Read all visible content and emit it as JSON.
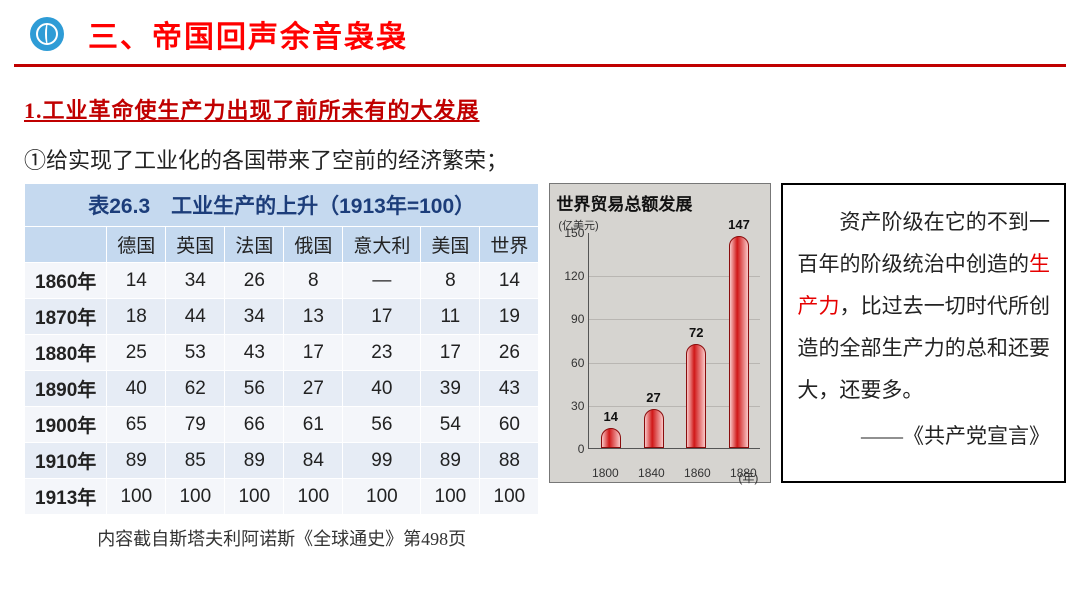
{
  "header": {
    "title": "三、帝国回声余音袅袅"
  },
  "section": {
    "heading": "1.工业革命使生产力出现了前所未有的大发展"
  },
  "subpoint": {
    "text": "①给实现了工业化的各国带来了空前的经济繁荣；"
  },
  "table": {
    "title": "表26.3　工业生产的上升（1913年=100）",
    "columns": [
      "德国",
      "英国",
      "法国",
      "俄国",
      "意大利",
      "美国",
      "世界"
    ],
    "rows": [
      {
        "label": "1860年",
        "cells": [
          "14",
          "34",
          "26",
          "8",
          "—",
          "8",
          "14"
        ]
      },
      {
        "label": "1870年",
        "cells": [
          "18",
          "44",
          "34",
          "13",
          "17",
          "11",
          "19"
        ]
      },
      {
        "label": "1880年",
        "cells": [
          "25",
          "53",
          "43",
          "17",
          "23",
          "17",
          "26"
        ]
      },
      {
        "label": "1890年",
        "cells": [
          "40",
          "62",
          "56",
          "27",
          "40",
          "39",
          "43"
        ]
      },
      {
        "label": "1900年",
        "cells": [
          "65",
          "79",
          "66",
          "61",
          "56",
          "54",
          "60"
        ]
      },
      {
        "label": "1910年",
        "cells": [
          "89",
          "85",
          "89",
          "84",
          "99",
          "89",
          "88"
        ]
      },
      {
        "label": "1913年",
        "cells": [
          "100",
          "100",
          "100",
          "100",
          "100",
          "100",
          "100"
        ]
      }
    ],
    "caption": "内容截自斯塔夫利阿诺斯《全球通史》第498页"
  },
  "chart": {
    "title": "世界贸易总额发展",
    "y_unit": "(亿美元)",
    "ylim_max": 150,
    "y_ticks": [
      150,
      120,
      90,
      60,
      30,
      0
    ],
    "x_unit": "(年)",
    "bars": [
      {
        "x": "1800",
        "value": 14
      },
      {
        "x": "1840",
        "value": 27
      },
      {
        "x": "1860",
        "value": 72
      },
      {
        "x": "1880",
        "value": 147
      }
    ],
    "bar_color": "#d01818",
    "background_color": "#d6d4d0"
  },
  "quote": {
    "pre": "资产阶级在它的不到一百年的阶级统治中创造的",
    "highlight": "生产力",
    "post": "，比过去一切时代所创造的全部生产力的总和还要大，还要多。",
    "source": "——《共产党宣言》"
  }
}
